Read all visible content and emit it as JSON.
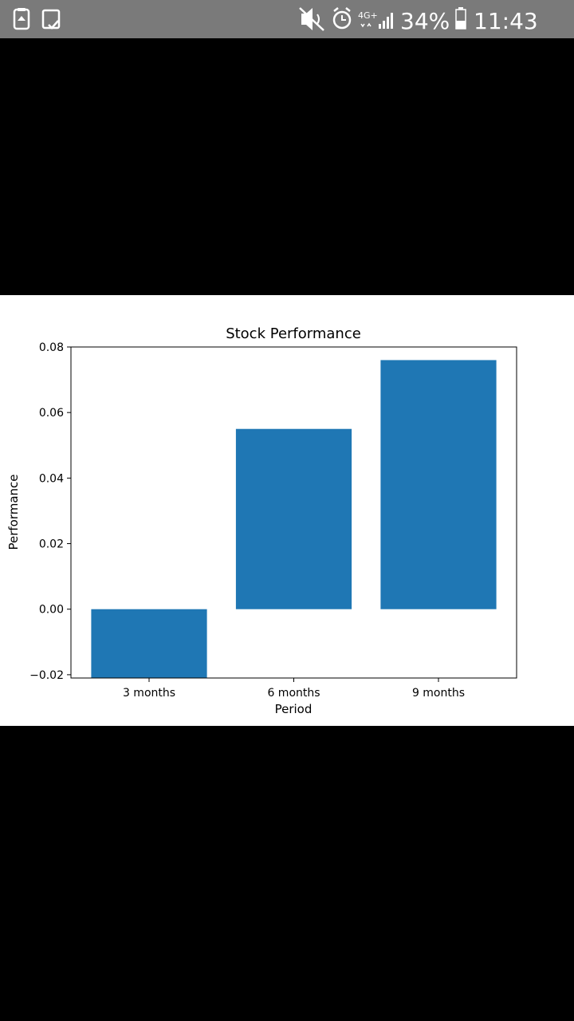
{
  "status_bar": {
    "battery_percent": "34%",
    "time": "11:43",
    "network_type": "4G+",
    "icons": [
      "recycle-icon",
      "tablet-check-icon",
      "mute-icon",
      "alarm-icon",
      "signal-icon",
      "battery-icon"
    ]
  },
  "colors": {
    "bar": "#1f77b4",
    "status_bar_bg": "#7a7a7a"
  },
  "chart_data": {
    "type": "bar",
    "title": "Stock Performance",
    "xlabel": "Period",
    "ylabel": "Performance",
    "categories": [
      "3 months",
      "6 months",
      "9 months"
    ],
    "values": [
      -0.021,
      0.055,
      0.076
    ],
    "ylim": [
      -0.021,
      0.08
    ],
    "yticks": [
      -0.02,
      0.0,
      0.02,
      0.04,
      0.06,
      0.08
    ],
    "ytick_labels": [
      "−0.02",
      "0.00",
      "0.02",
      "0.04",
      "0.06",
      "0.08"
    ],
    "grid": false
  }
}
